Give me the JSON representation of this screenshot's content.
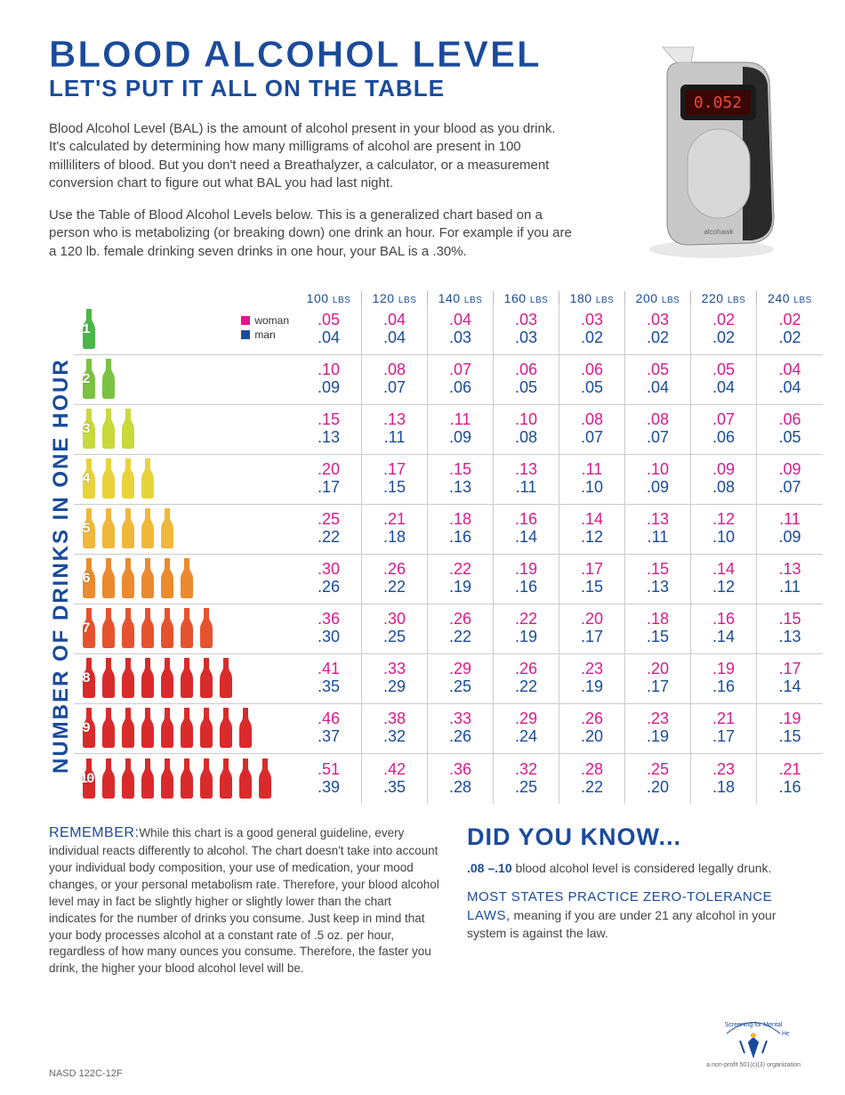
{
  "title": "BLOOD ALCOHOL LEVEL",
  "subtitle": "LET'S PUT IT ALL ON THE TABLE",
  "intro1": "Blood Alcohol Level (BAL) is the amount of alcohol present in your blood as you drink. It's calculated by determining how many milligrams of alcohol are present in 100 milliliters of blood. But you don't need a Breathalyzer, a calculator, or a measurement conversion chart to figure out what BAL you had last night.",
  "intro2": "Use the Table of Blood Alcohol Levels below. This is a generalized chart based on a person who is metabolizing (or breaking down) one drink an hour. For example if you are a 120 lb. female drinking seven drinks in one hour, your BAL is a .30%.",
  "device_reading": "0.052",
  "device_brand": "alcohawk",
  "yaxis": "NUMBER OF DRINKS IN ONE HOUR",
  "legend": {
    "woman": "woman",
    "man": "man",
    "woman_color": "#d91b8c",
    "man_color": "#1a4b9b"
  },
  "weights": [
    "100",
    "120",
    "140",
    "160",
    "180",
    "200",
    "220",
    "240"
  ],
  "weight_unit": "LBS",
  "bottle_colors": [
    "#4bb749",
    "#7cc242",
    "#c8d93a",
    "#e8d33a",
    "#f0b83a",
    "#eb8a2e",
    "#e5532e",
    "#d92b2b",
    "#d92b2b",
    "#d92b2b"
  ],
  "rows": [
    {
      "n": 1,
      "w": [
        ".05",
        ".04",
        ".04",
        ".03",
        ".03",
        ".03",
        ".02",
        ".02"
      ],
      "m": [
        ".04",
        ".04",
        ".03",
        ".03",
        ".02",
        ".02",
        ".02",
        ".02"
      ]
    },
    {
      "n": 2,
      "w": [
        ".10",
        ".08",
        ".07",
        ".06",
        ".06",
        ".05",
        ".05",
        ".04"
      ],
      "m": [
        ".09",
        ".07",
        ".06",
        ".05",
        ".05",
        ".04",
        ".04",
        ".04"
      ]
    },
    {
      "n": 3,
      "w": [
        ".15",
        ".13",
        ".11",
        ".10",
        ".08",
        ".08",
        ".07",
        ".06"
      ],
      "m": [
        ".13",
        ".11",
        ".09",
        ".08",
        ".07",
        ".07",
        ".06",
        ".05"
      ]
    },
    {
      "n": 4,
      "w": [
        ".20",
        ".17",
        ".15",
        ".13",
        ".11",
        ".10",
        ".09",
        ".09"
      ],
      "m": [
        ".17",
        ".15",
        ".13",
        ".11",
        ".10",
        ".09",
        ".08",
        ".07"
      ]
    },
    {
      "n": 5,
      "w": [
        ".25",
        ".21",
        ".18",
        ".16",
        ".14",
        ".13",
        ".12",
        ".11"
      ],
      "m": [
        ".22",
        ".18",
        ".16",
        ".14",
        ".12",
        ".11",
        ".10",
        ".09"
      ]
    },
    {
      "n": 6,
      "w": [
        ".30",
        ".26",
        ".22",
        ".19",
        ".17",
        ".15",
        ".14",
        ".13"
      ],
      "m": [
        ".26",
        ".22",
        ".19",
        ".16",
        ".15",
        ".13",
        ".12",
        ".11"
      ]
    },
    {
      "n": 7,
      "w": [
        ".36",
        ".30",
        ".26",
        ".22",
        ".20",
        ".18",
        ".16",
        ".15"
      ],
      "m": [
        ".30",
        ".25",
        ".22",
        ".19",
        ".17",
        ".15",
        ".14",
        ".13"
      ]
    },
    {
      "n": 8,
      "w": [
        ".41",
        ".33",
        ".29",
        ".26",
        ".23",
        ".20",
        ".19",
        ".17"
      ],
      "m": [
        ".35",
        ".29",
        ".25",
        ".22",
        ".19",
        ".17",
        ".16",
        ".14"
      ]
    },
    {
      "n": 9,
      "w": [
        ".46",
        ".38",
        ".33",
        ".29",
        ".26",
        ".23",
        ".21",
        ".19"
      ],
      "m": [
        ".37",
        ".32",
        ".26",
        ".24",
        ".20",
        ".19",
        ".17",
        ".15"
      ]
    },
    {
      "n": 10,
      "w": [
        ".51",
        ".42",
        ".36",
        ".32",
        ".28",
        ".25",
        ".23",
        ".21"
      ],
      "m": [
        ".39",
        ".35",
        ".28",
        ".25",
        ".22",
        ".20",
        ".18",
        ".16"
      ]
    }
  ],
  "remember_hdr": "REMEMBER:",
  "remember_body": "While this chart is a good general guideline, every individual reacts differently to alcohol. The chart doesn't take into account your individual body composition, your use of medication, your mood changes, or your personal metabolism rate. Therefore, your blood alcohol level may in fact be slightly higher or slightly lower than the chart indicates for the number of drinks you consume. Just keep in mind that your body processes alcohol at a constant rate of .5 oz. per hour, regardless of how many ounces you consume. Therefore, the faster you drink, the higher your blood alcohol level will be.",
  "dyk_title": "DID YOU KNOW...",
  "dyk_range": ".08 –.10",
  "dyk_body1": " blood alcohol level is considered legally drunk.",
  "dyk_sub": "MOST STATES PRACTICE ZERO-TOLERANCE LAWS,",
  "dyk_body2": " meaning if you are under 21 any alcohol in your system is against the law.",
  "logo_text": "Screening for Mental Health",
  "logo_tag": "a non-profit 501(c)(3) organization",
  "footer_code": "NASD 122C-12F"
}
